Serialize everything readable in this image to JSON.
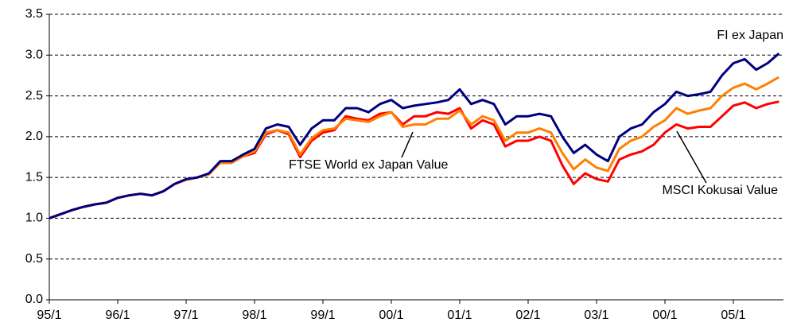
{
  "chart_data": {
    "type": "line",
    "categories": [
      "95/1",
      null,
      null,
      null,
      null,
      null,
      "96/1",
      null,
      null,
      null,
      null,
      null,
      "97/1",
      null,
      null,
      null,
      null,
      null,
      "98/1",
      null,
      null,
      null,
      null,
      null,
      "99/1",
      null,
      null,
      null,
      null,
      null,
      "00/1",
      null,
      null,
      null,
      null,
      null,
      "01/1",
      null,
      null,
      null,
      null,
      null,
      "02/1",
      null,
      null,
      null,
      null,
      null,
      "03/1",
      null,
      null,
      null,
      null,
      null,
      "00/1",
      null,
      null,
      null,
      null,
      null,
      "05/1",
      null,
      null,
      null,
      null
    ],
    "series": [
      {
        "name": "FI ex Japan",
        "color": "#000080",
        "values": [
          1.0,
          1.05,
          1.1,
          1.14,
          1.17,
          1.19,
          1.25,
          1.28,
          1.3,
          1.28,
          1.33,
          1.42,
          1.48,
          1.5,
          1.55,
          1.7,
          1.7,
          1.78,
          1.85,
          2.1,
          2.15,
          2.12,
          1.9,
          2.1,
          2.2,
          2.2,
          2.35,
          2.35,
          2.3,
          2.4,
          2.45,
          2.35,
          2.38,
          2.4,
          2.42,
          2.45,
          2.58,
          2.4,
          2.45,
          2.4,
          2.15,
          2.25,
          2.25,
          2.28,
          2.25,
          2.0,
          1.8,
          1.9,
          1.78,
          1.7,
          2.0,
          2.1,
          2.15,
          2.3,
          2.4,
          2.55,
          2.5,
          2.52,
          2.55,
          2.75,
          2.9,
          2.95,
          2.82,
          2.9,
          3.02
        ]
      },
      {
        "name": "FTSE World ex Japan Value",
        "color": "#ff8000",
        "values": [
          1.0,
          1.05,
          1.1,
          1.14,
          1.17,
          1.19,
          1.25,
          1.28,
          1.3,
          1.28,
          1.33,
          1.42,
          1.47,
          1.5,
          1.54,
          1.68,
          1.68,
          1.76,
          1.82,
          2.05,
          2.08,
          2.05,
          1.78,
          1.98,
          2.08,
          2.1,
          2.22,
          2.2,
          2.18,
          2.25,
          2.3,
          2.12,
          2.15,
          2.15,
          2.22,
          2.22,
          2.32,
          2.15,
          2.25,
          2.2,
          1.95,
          2.05,
          2.05,
          2.1,
          2.05,
          1.8,
          1.6,
          1.72,
          1.62,
          1.58,
          1.85,
          1.95,
          2.0,
          2.12,
          2.2,
          2.35,
          2.28,
          2.32,
          2.35,
          2.5,
          2.6,
          2.65,
          2.58,
          2.65,
          2.73
        ]
      },
      {
        "name": "MSCI Kokusai Value",
        "color": "#ff0000",
        "values": [
          1.0,
          1.05,
          1.1,
          1.14,
          1.17,
          1.19,
          1.25,
          1.28,
          1.3,
          1.28,
          1.33,
          1.42,
          1.47,
          1.5,
          1.54,
          1.68,
          1.68,
          1.76,
          1.8,
          2.03,
          2.08,
          2.03,
          1.75,
          1.95,
          2.05,
          2.08,
          2.25,
          2.22,
          2.2,
          2.28,
          2.3,
          2.15,
          2.25,
          2.25,
          2.3,
          2.28,
          2.35,
          2.1,
          2.2,
          2.15,
          1.88,
          1.95,
          1.95,
          2.0,
          1.95,
          1.65,
          1.42,
          1.55,
          1.48,
          1.45,
          1.72,
          1.78,
          1.82,
          1.9,
          2.05,
          2.15,
          2.1,
          2.12,
          2.12,
          2.25,
          2.38,
          2.42,
          2.35,
          2.4,
          2.43
        ]
      }
    ],
    "ylim": [
      0,
      3.5
    ],
    "yticks": [
      {
        "value": 0,
        "label": "0.0"
      },
      {
        "value": 0.5,
        "label": "0.5"
      },
      {
        "value": 1,
        "label": "1.0"
      },
      {
        "value": 1.5,
        "label": "1.5"
      },
      {
        "value": 2,
        "label": "2.0"
      },
      {
        "value": 2.5,
        "label": "2.5"
      },
      {
        "value": 3,
        "label": "3.0"
      },
      {
        "value": 3.5,
        "label": "3.5"
      }
    ],
    "grid": true
  }
}
